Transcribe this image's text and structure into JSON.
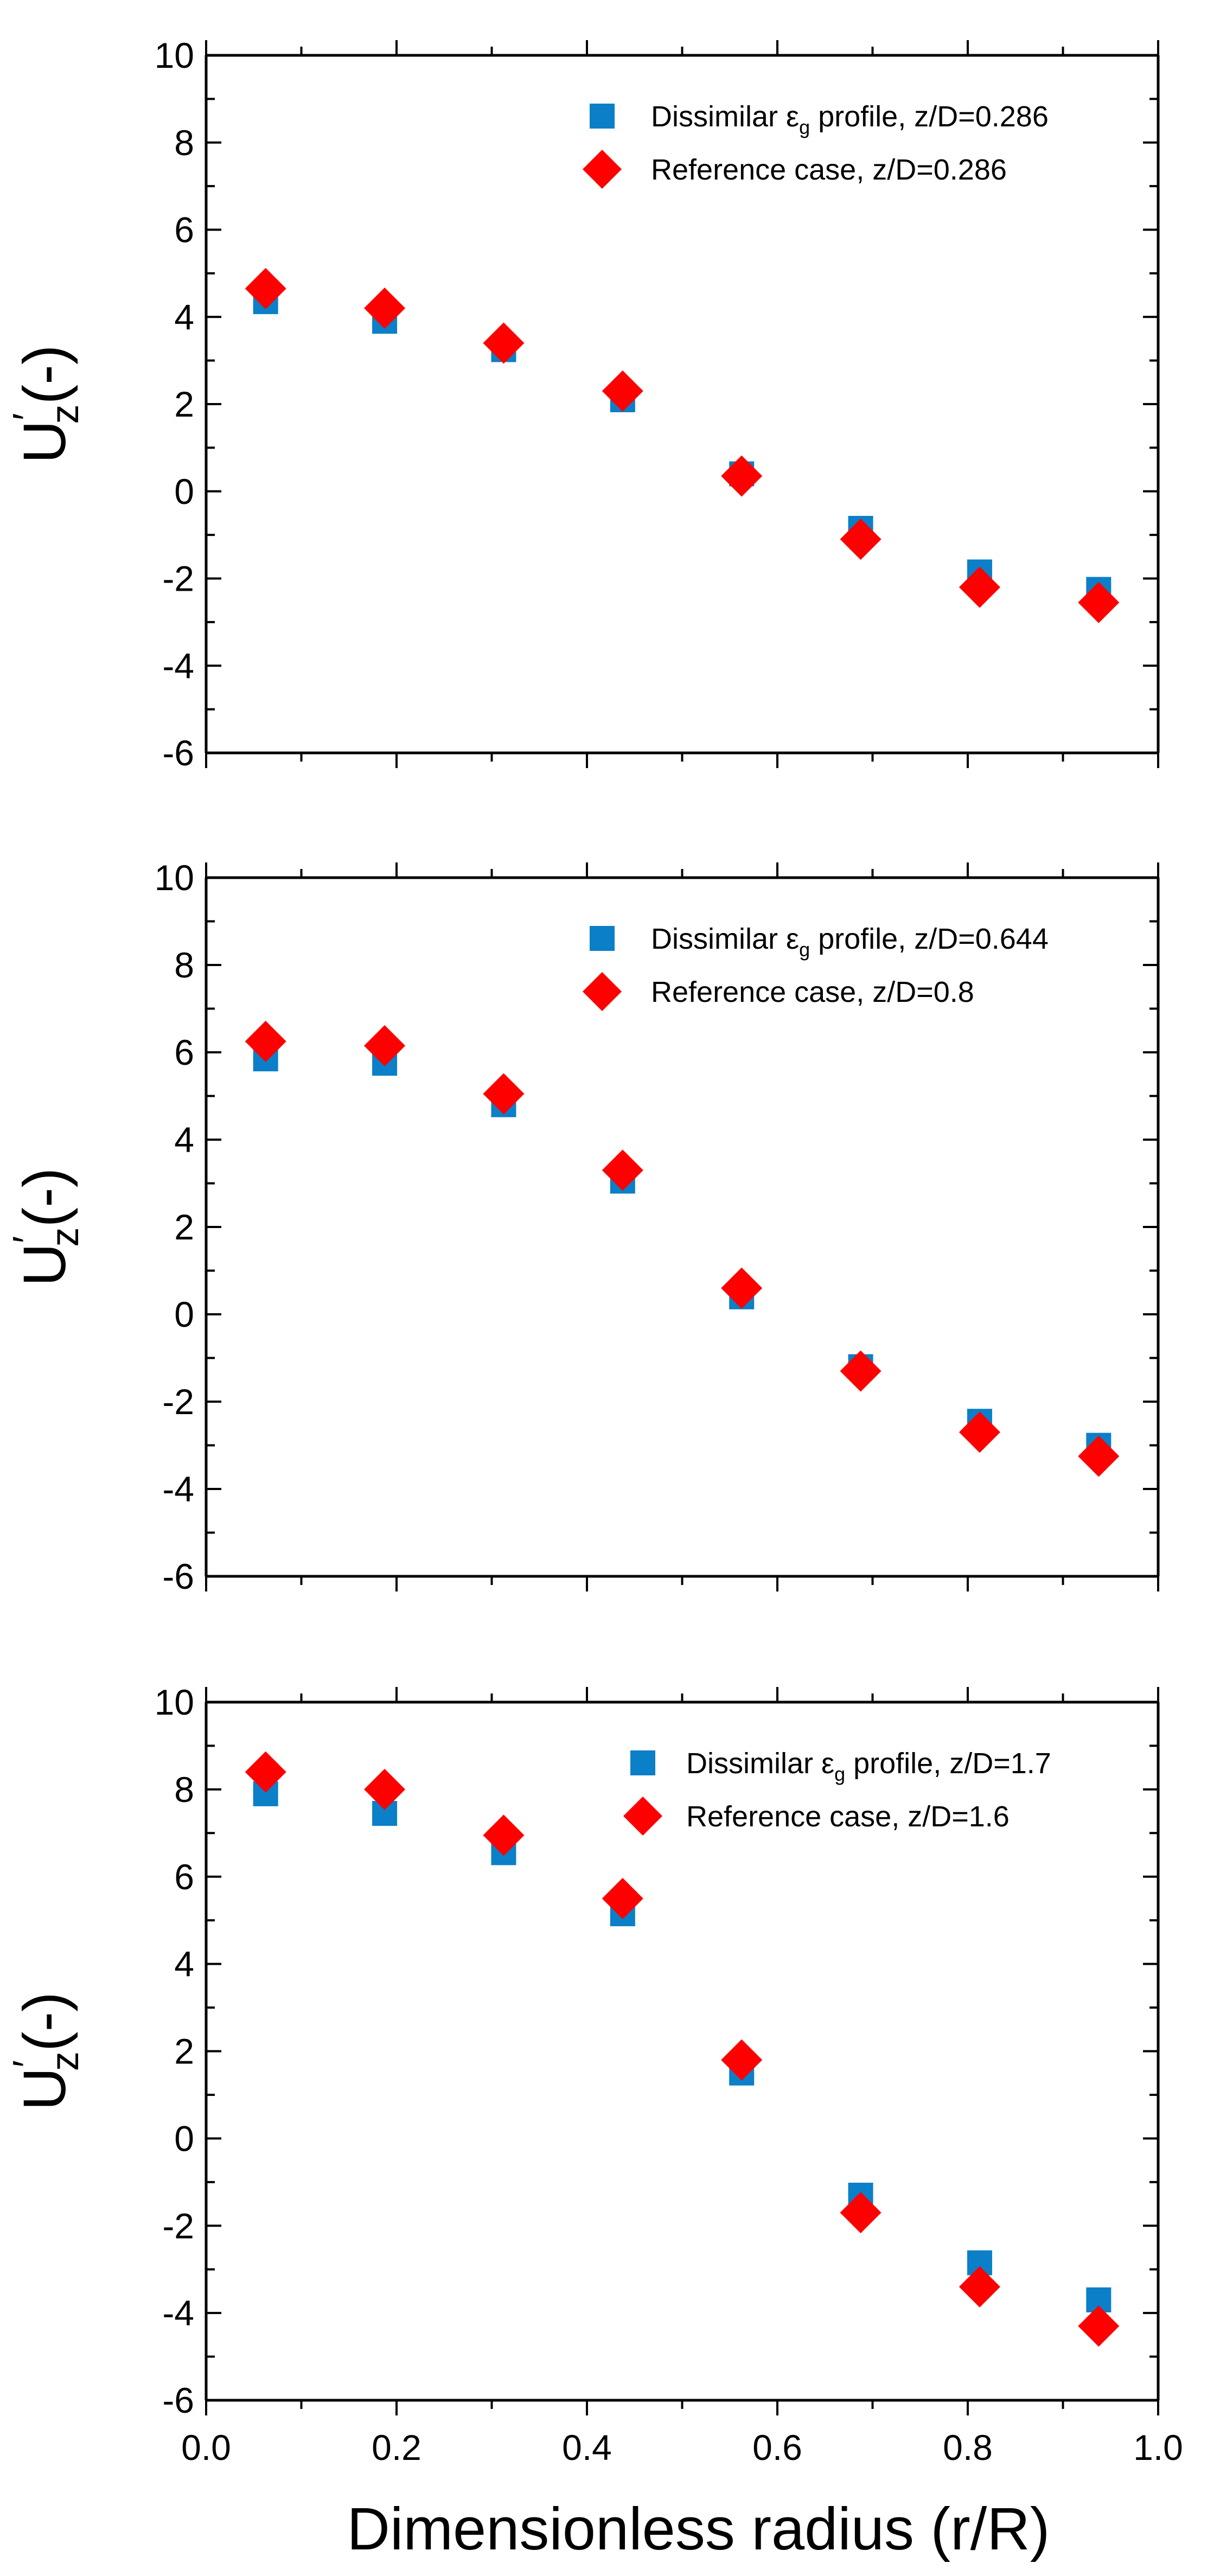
{
  "chart_data": [
    {
      "type": "scatter",
      "title": "",
      "xlabel": "Dimensionless radius (r/R)",
      "ylabel": {
        "main": "U",
        "sub": "z",
        "prime": "′",
        "suffix": "(-)"
      },
      "xlim": [
        0.0,
        1.0
      ],
      "ylim": [
        -6,
        10
      ],
      "yticks": [
        "10",
        "8",
        "6",
        "4",
        "2",
        "0",
        "-2",
        "-4",
        "-6"
      ],
      "yticks_values": [
        10,
        8,
        6,
        4,
        2,
        0,
        -2,
        -4,
        -6
      ],
      "xticks": [
        "0.0",
        "0.2",
        "0.4",
        "0.6",
        "0.8",
        "1.0"
      ],
      "xticks_values": [
        0.0,
        0.2,
        0.4,
        0.6,
        0.8,
        1.0
      ],
      "show_xtick_labels": false,
      "show_xlabel": false,
      "legend_position": "top-right",
      "x": [
        0.0625,
        0.1875,
        0.3125,
        0.4375,
        0.5625,
        0.6875,
        0.8125,
        0.9375
      ],
      "series": [
        {
          "name_pre": "Dissimilar ",
          "name_symbol": "ε",
          "name_sub": "g",
          "name_post": " profile, z/D=0.286",
          "marker": "square",
          "color": "#0b7fc7",
          "values": [
            4.35,
            3.9,
            3.25,
            2.1,
            0.4,
            -0.85,
            -1.85,
            -2.25
          ]
        },
        {
          "name_pre": "Reference case, z/D=0.286",
          "name_symbol": "",
          "name_sub": "",
          "name_post": "",
          "marker": "diamond",
          "color": "#ff0000",
          "values": [
            4.65,
            4.2,
            3.4,
            2.3,
            0.35,
            -1.1,
            -2.2,
            -2.55
          ]
        }
      ]
    },
    {
      "type": "scatter",
      "title": "",
      "xlabel": "Dimensionless radius (r/R)",
      "ylabel": {
        "main": "U",
        "sub": "z",
        "prime": "′",
        "suffix": "(-)"
      },
      "xlim": [
        0.0,
        1.0
      ],
      "ylim": [
        -6,
        10
      ],
      "yticks": [
        "10",
        "8",
        "6",
        "4",
        "2",
        "0",
        "-2",
        "-4",
        "-6"
      ],
      "yticks_values": [
        10,
        8,
        6,
        4,
        2,
        0,
        -2,
        -4,
        -6
      ],
      "xticks": [
        "0.0",
        "0.2",
        "0.4",
        "0.6",
        "0.8",
        "1.0"
      ],
      "xticks_values": [
        0.0,
        0.2,
        0.4,
        0.6,
        0.8,
        1.0
      ],
      "show_xtick_labels": false,
      "show_xlabel": false,
      "legend_position": "top-right",
      "x": [
        0.0625,
        0.1875,
        0.3125,
        0.4375,
        0.5625,
        0.6875,
        0.8125,
        0.9375
      ],
      "series": [
        {
          "name_pre": "Dissimilar ",
          "name_symbol": "ε",
          "name_sub": "g",
          "name_post": " profile, z/D=0.644",
          "marker": "square",
          "color": "#0b7fc7",
          "values": [
            5.85,
            5.75,
            4.8,
            3.05,
            0.4,
            -1.2,
            -2.45,
            -3.0
          ]
        },
        {
          "name_pre": "Reference case, z/D=0.8",
          "name_symbol": "",
          "name_sub": "",
          "name_post": "",
          "marker": "diamond",
          "color": "#ff0000",
          "values": [
            6.25,
            6.15,
            5.05,
            3.3,
            0.6,
            -1.3,
            -2.7,
            -3.25
          ]
        }
      ]
    },
    {
      "type": "scatter",
      "title": "",
      "xlabel": "Dimensionless radius (r/R)",
      "ylabel": {
        "main": "U",
        "sub": "z",
        "prime": "′",
        "suffix": "(-)"
      },
      "xlim": [
        0.0,
        1.0
      ],
      "ylim": [
        -6,
        10
      ],
      "yticks": [
        "10",
        "8",
        "6",
        "4",
        "2",
        "0",
        "-2",
        "-4",
        "-6"
      ],
      "yticks_values": [
        10,
        8,
        6,
        4,
        2,
        0,
        -2,
        -4,
        -6
      ],
      "xticks": [
        "0.0",
        "0.2",
        "0.4",
        "0.6",
        "0.8",
        "1.0"
      ],
      "xticks_values": [
        0.0,
        0.2,
        0.4,
        0.6,
        0.8,
        1.0
      ],
      "show_xtick_labels": true,
      "show_xlabel": true,
      "legend_position": "top-right",
      "x": [
        0.0625,
        0.1875,
        0.3125,
        0.4375,
        0.5625,
        0.6875,
        0.8125,
        0.9375
      ],
      "series": [
        {
          "name_pre": "Dissimilar ",
          "name_symbol": "ε",
          "name_sub": "g",
          "name_post": " profile, z/D=1.7",
          "marker": "square",
          "color": "#0b7fc7",
          "values": [
            7.9,
            7.45,
            6.55,
            5.15,
            1.5,
            -1.3,
            -2.85,
            -3.7
          ]
        },
        {
          "name_pre": "Reference case, z/D=1.6",
          "name_symbol": "",
          "name_sub": "",
          "name_post": "",
          "marker": "diamond",
          "color": "#ff0000",
          "values": [
            8.4,
            8.0,
            6.95,
            5.5,
            1.8,
            -1.7,
            -3.4,
            -4.3
          ]
        }
      ]
    }
  ]
}
